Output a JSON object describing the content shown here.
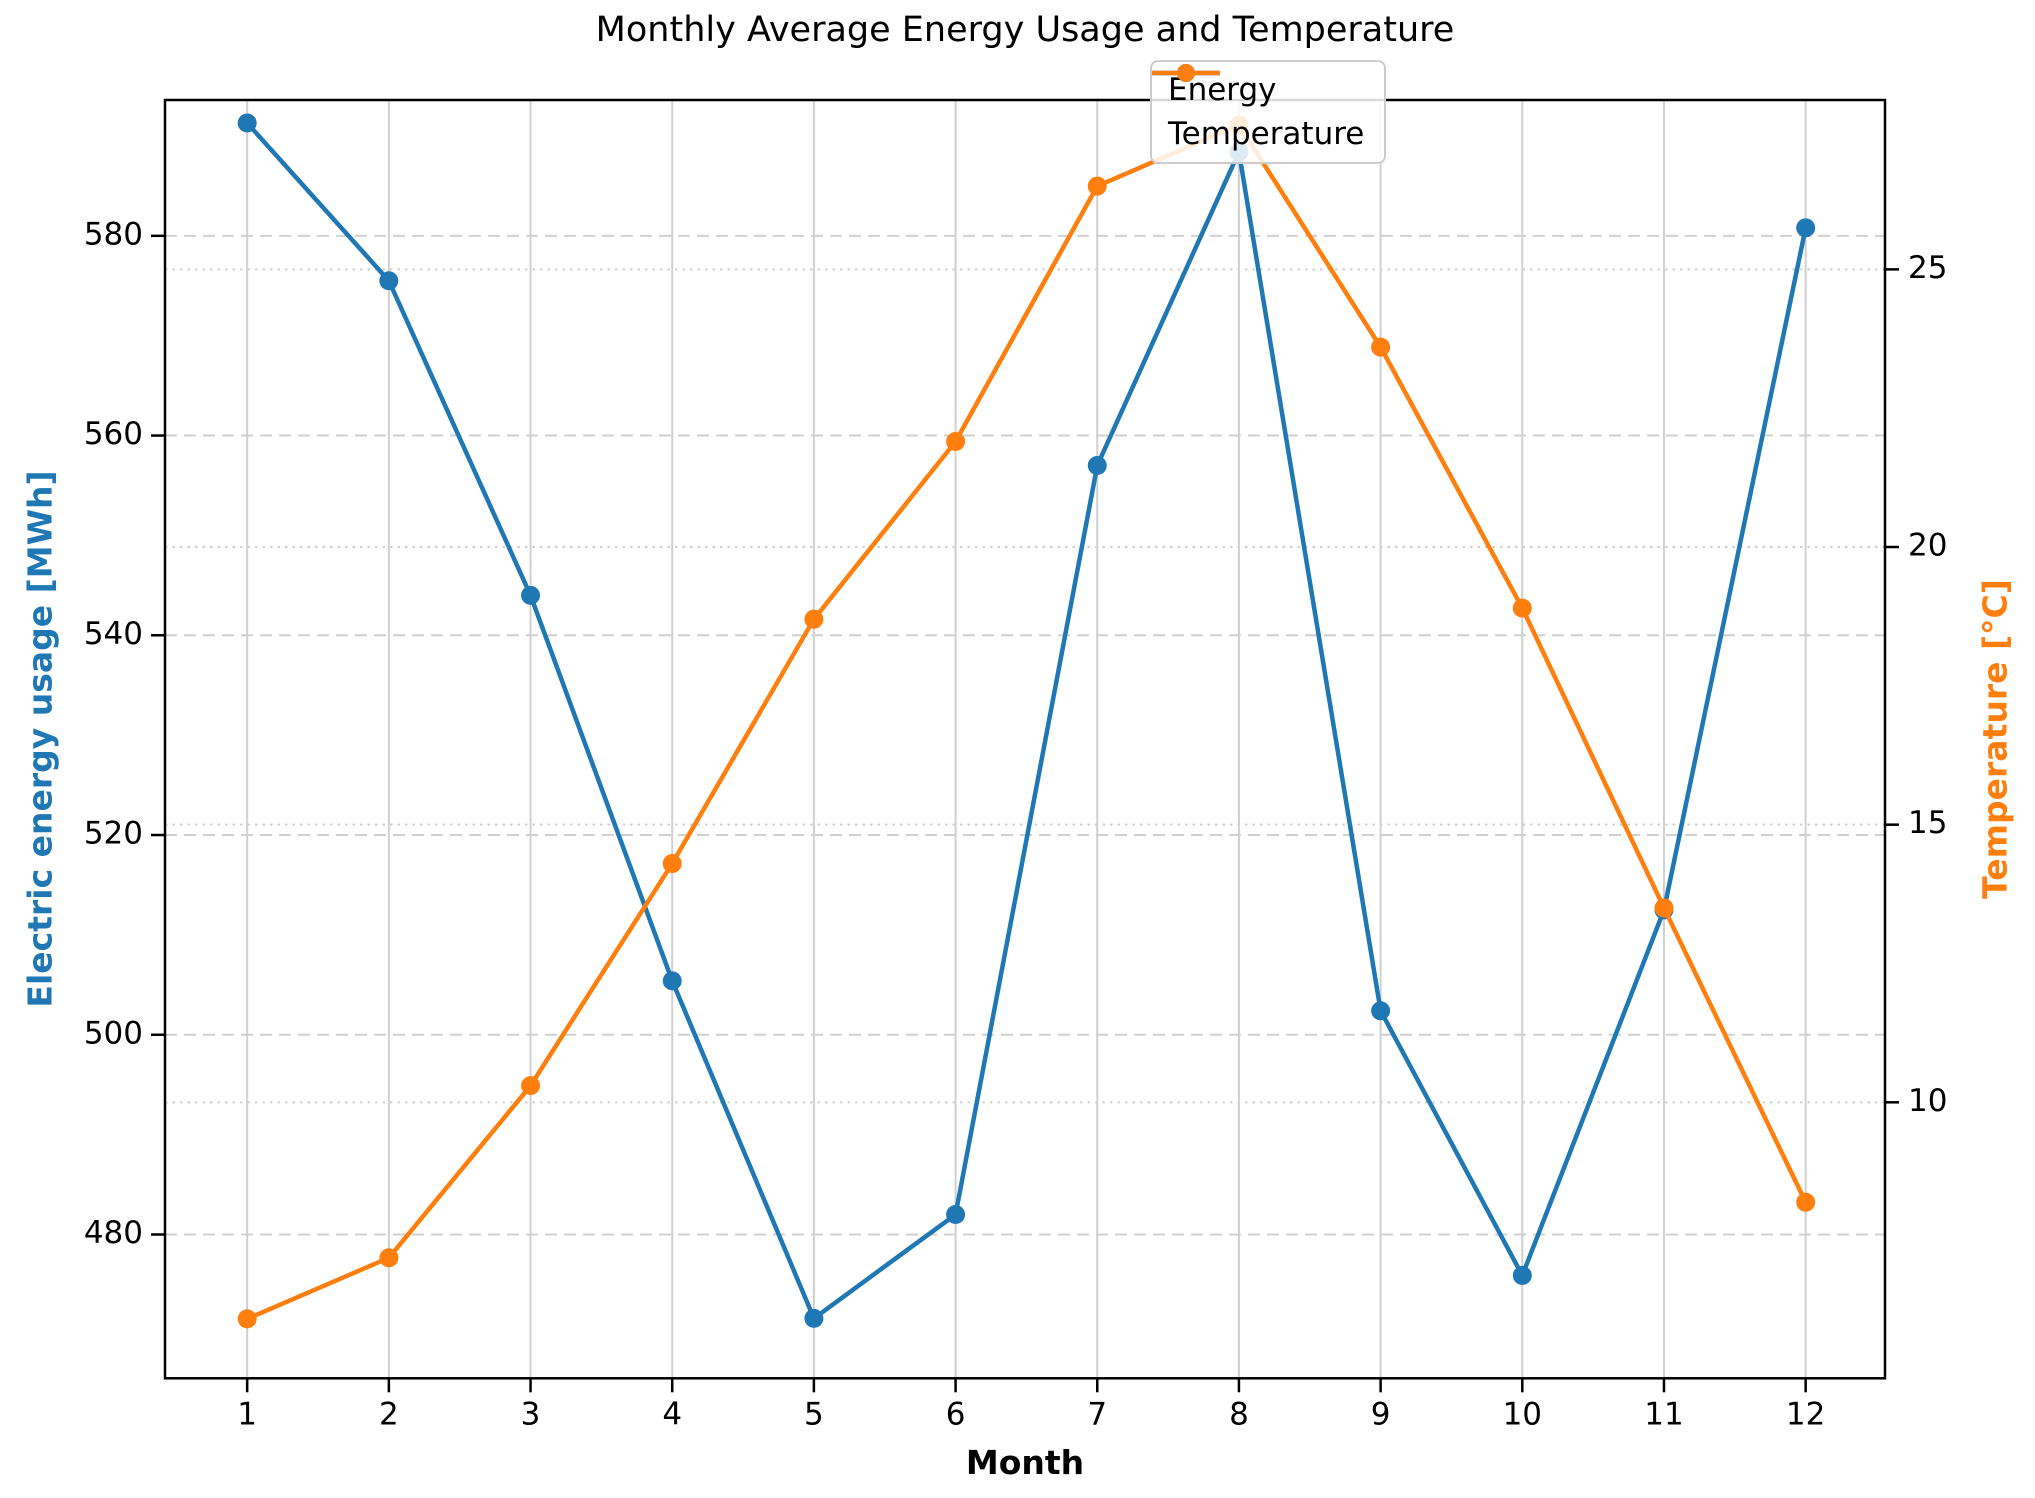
{
  "chart_data": {
    "type": "line",
    "title": "Monthly Average Energy Usage and Temperature",
    "xlabel": "Month",
    "ylabel_left": "Electric energy usage [MWh]",
    "ylabel_right": "Temperature [°C]",
    "x": [
      1,
      2,
      3,
      4,
      5,
      6,
      7,
      8,
      9,
      10,
      11,
      12
    ],
    "series": [
      {
        "name": "Energy",
        "axis": "left",
        "color": "#1f77b4",
        "marker": "circle",
        "values": [
          591.3,
          575.5,
          544.0,
          505.4,
          471.6,
          482.0,
          557.0,
          588.4,
          502.4,
          475.9,
          512.5,
          580.8
        ]
      },
      {
        "name": "Temperature",
        "axis": "right",
        "color": "#ff7f0e",
        "marker": "circle",
        "values": [
          6.1,
          7.2,
          10.3,
          14.3,
          18.7,
          21.9,
          26.5,
          27.6,
          23.6,
          18.9,
          13.5,
          8.2
        ]
      }
    ],
    "axes": {
      "x": {
        "ticks": [
          1,
          2,
          3,
          4,
          5,
          6,
          7,
          8,
          9,
          10,
          11,
          12
        ],
        "lim": [
          0.42,
          12.56
        ]
      },
      "left": {
        "ticks": [
          480,
          500,
          520,
          540,
          560,
          580
        ],
        "lim": [
          465.6,
          593.6
        ]
      },
      "right": {
        "ticks": [
          10,
          15,
          20,
          25
        ],
        "lim": [
          5.03,
          28.05
        ]
      }
    },
    "legend": {
      "position": "upper right",
      "entries": [
        "Energy",
        "Temperature"
      ]
    },
    "grid": {
      "vertical": "solid",
      "left_ticks": "dashed",
      "right_ticks": "dotted",
      "color": "#d0d0d0"
    },
    "spine_color": "#000000"
  }
}
